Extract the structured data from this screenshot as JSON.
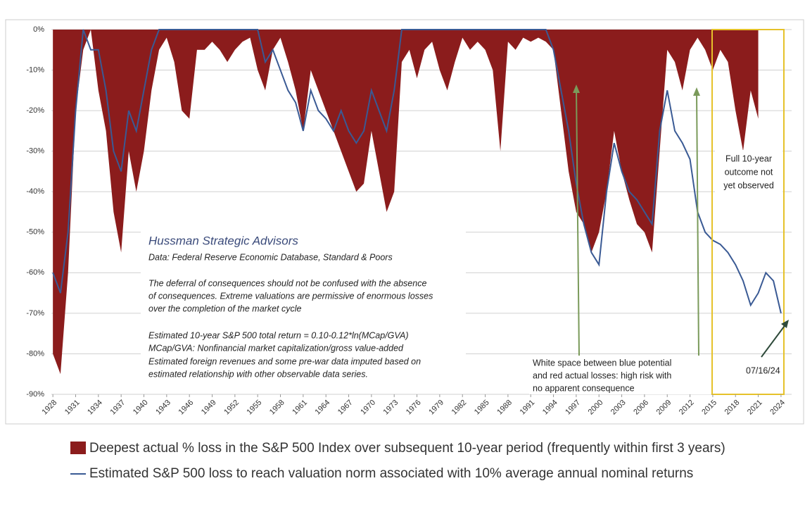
{
  "chart_data": {
    "type": "area-line",
    "x": [
      1928,
      1929,
      1930,
      1931,
      1932,
      1933,
      1934,
      1935,
      1936,
      1937,
      1938,
      1939,
      1940,
      1941,
      1942,
      1943,
      1944,
      1945,
      1946,
      1947,
      1948,
      1949,
      1950,
      1951,
      1952,
      1953,
      1954,
      1955,
      1956,
      1957,
      1958,
      1959,
      1960,
      1961,
      1962,
      1963,
      1964,
      1965,
      1966,
      1967,
      1968,
      1969,
      1970,
      1971,
      1972,
      1973,
      1974,
      1975,
      1976,
      1977,
      1978,
      1979,
      1980,
      1981,
      1982,
      1983,
      1984,
      1985,
      1986,
      1987,
      1988,
      1989,
      1990,
      1991,
      1992,
      1993,
      1994,
      1995,
      1996,
      1997,
      1998,
      1999,
      2000,
      2001,
      2002,
      2003,
      2004,
      2005,
      2006,
      2007,
      2008,
      2009,
      2010,
      2011,
      2012,
      2013,
      2014,
      2015,
      2016,
      2017,
      2018,
      2019,
      2020,
      2021,
      2022,
      2023,
      2024
    ],
    "series": [
      {
        "name": "Deepest actual % loss in the S&P 500 Index over subsequent 10-year period (frequently within first 3 years)",
        "color": "#8b1c1c",
        "kind": "area",
        "values": [
          -80,
          -85,
          -60,
          -20,
          -5,
          0,
          -15,
          -25,
          -45,
          -55,
          -30,
          -40,
          -30,
          -15,
          -5,
          -2,
          -8,
          -20,
          -22,
          -5,
          -5,
          -3,
          -5,
          -8,
          -5,
          -3,
          -2,
          -10,
          -15,
          -5,
          -2,
          -8,
          -15,
          -25,
          -10,
          -15,
          -20,
          -25,
          -30,
          -35,
          -40,
          -38,
          -25,
          -35,
          -45,
          -40,
          -8,
          -5,
          -12,
          -5,
          -3,
          -10,
          -15,
          -8,
          -2,
          -5,
          -3,
          -5,
          -10,
          -30,
          -3,
          -5,
          -2,
          -3,
          -2,
          -3,
          -5,
          -20,
          -35,
          -45,
          -48,
          -55,
          -50,
          -40,
          -25,
          -35,
          -42,
          -48,
          -50,
          -55,
          -30,
          -5,
          -8,
          -15,
          -5,
          -2,
          -5,
          -10,
          -5,
          -8,
          -20,
          -30,
          -15,
          -22,
          null,
          null,
          null
        ]
      },
      {
        "name": "Estimated S&P 500 loss to reach valuation norm associated with 10% average annual nominal returns",
        "color": "#3a5a94",
        "kind": "line",
        "values": [
          -60,
          -65,
          -50,
          -20,
          0,
          -5,
          -5,
          -15,
          -30,
          -35,
          -20,
          -25,
          -15,
          -5,
          0,
          0,
          0,
          0,
          0,
          0,
          0,
          0,
          0,
          0,
          0,
          0,
          0,
          0,
          -8,
          -5,
          -10,
          -15,
          -18,
          -25,
          -15,
          -20,
          -22,
          -25,
          -20,
          -25,
          -28,
          -25,
          -15,
          -20,
          -25,
          -15,
          0,
          0,
          0,
          0,
          0,
          0,
          0,
          0,
          0,
          0,
          0,
          0,
          0,
          0,
          0,
          0,
          0,
          0,
          0,
          0,
          -5,
          -15,
          -25,
          -38,
          -48,
          -55,
          -58,
          -40,
          -28,
          -35,
          -40,
          -42,
          -45,
          -48,
          -25,
          -15,
          -25,
          -28,
          -32,
          -45,
          -50,
          -52,
          -53,
          -55,
          -58,
          -62,
          -68,
          -65,
          -60,
          -62,
          -70
        ]
      }
    ],
    "xlim": [
      1927.8,
      2025.4
    ],
    "ylim": [
      -90,
      0
    ],
    "xticks": [
      1928,
      1931,
      1934,
      1937,
      1940,
      1943,
      1946,
      1949,
      1952,
      1955,
      1958,
      1961,
      1964,
      1967,
      1970,
      1973,
      1976,
      1979,
      1982,
      1985,
      1988,
      1991,
      1994,
      1997,
      2000,
      2003,
      2006,
      2009,
      2012,
      2015,
      2018,
      2021,
      2024
    ],
    "yticks": [
      {
        "value": 0,
        "label": "0%"
      },
      {
        "value": -10,
        "label": "-10%"
      },
      {
        "value": -20,
        "label": "-20%"
      },
      {
        "value": -30,
        "label": "-30%"
      },
      {
        "value": -40,
        "label": "-40%"
      },
      {
        "value": -50,
        "label": "-50%"
      },
      {
        "value": -60,
        "label": "-60%"
      },
      {
        "value": -70,
        "label": "-70%"
      },
      {
        "value": -80,
        "label": "-80%"
      },
      {
        "value": -90,
        "label": "-90%"
      }
    ],
    "grid": true,
    "info_box": [
      "Hussman Strategic Advisors",
      "Data: Federal Reserve Economic Database, Standard & Poors",
      "The deferral of consequences  should not be confused with the absence",
      "of consequences.  Extreme valuations are permissive of enormous losses",
      "over the completion of the market cycle",
      "Estimated 10-year S&P 500 total return = 0.10-0.12*ln(MCap/GVA)",
      "MCap/GVA: Nonfinancial market capitalization/gross value-added",
      "Estimated foreign revenues and some pre-war data imputed based on",
      "estimated relationship with other observable data series."
    ],
    "annotations": [
      "Full 10-year",
      "outcome not",
      "yet observed",
      "White space between blue potential",
      "and red actual losses: high risk with",
      "no apparent consequence",
      "07/16/24"
    ]
  }
}
